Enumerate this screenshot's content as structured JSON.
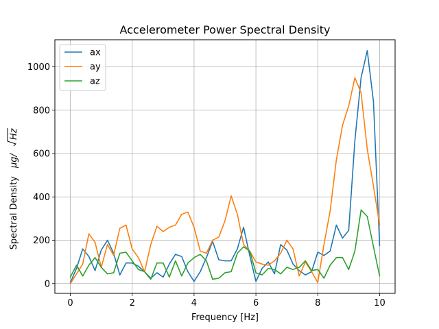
{
  "chart_data": {
    "type": "line",
    "title": "Accelerometer Power Spectral Density",
    "xlabel": "Frequency [Hz]",
    "ylabel_prefix": "Spectral Density",
    "ylabel_unit_left": "μg/",
    "ylabel_unit_radicand": "Hz",
    "xlim": [
      -0.5,
      10.5
    ],
    "ylim": [
      -45,
      1125
    ],
    "xticks": [
      0,
      2,
      4,
      6,
      8,
      10
    ],
    "yticks": [
      0,
      200,
      400,
      600,
      800,
      1000
    ],
    "grid": true,
    "legend_position": "upper-left",
    "x": [
      0.0,
      0.2,
      0.4,
      0.6,
      0.8,
      1.0,
      1.2,
      1.4,
      1.6,
      1.8,
      2.0,
      2.2,
      2.4,
      2.6,
      2.8,
      3.0,
      3.2,
      3.4,
      3.6,
      3.8,
      4.0,
      4.2,
      4.4,
      4.6,
      4.8,
      5.0,
      5.2,
      5.4,
      5.6,
      5.8,
      6.0,
      6.2,
      6.4,
      6.6,
      6.8,
      7.0,
      7.2,
      7.4,
      7.6,
      7.8,
      8.0,
      8.2,
      8.4,
      8.6,
      8.8,
      9.0,
      9.2,
      9.4,
      9.6,
      9.8,
      10.0
    ],
    "series": [
      {
        "name": "ax",
        "color": "#1f77b4",
        "values": [
          5,
          70,
          160,
          125,
          60,
          155,
          200,
          140,
          40,
          95,
          95,
          80,
          55,
          25,
          50,
          30,
          90,
          135,
          125,
          55,
          10,
          55,
          120,
          195,
          110,
          105,
          105,
          160,
          260,
          130,
          10,
          70,
          100,
          45,
          180,
          155,
          90,
          60,
          40,
          55,
          145,
          130,
          150,
          270,
          210,
          245,
          660,
          950,
          1075,
          840,
          175
        ]
      },
      {
        "name": "ay",
        "color": "#ff7f0e",
        "values": [
          0,
          45,
          90,
          230,
          190,
          75,
          180,
          130,
          255,
          270,
          160,
          120,
          55,
          180,
          265,
          240,
          260,
          270,
          320,
          330,
          260,
          150,
          140,
          200,
          215,
          290,
          405,
          320,
          180,
          150,
          100,
          90,
          85,
          105,
          140,
          200,
          160,
          35,
          100,
          55,
          5,
          180,
          335,
          570,
          730,
          820,
          950,
          880,
          620,
          450,
          270
        ]
      },
      {
        "name": "az",
        "color": "#2ca02c",
        "values": [
          30,
          85,
          35,
          85,
          120,
          75,
          45,
          50,
          140,
          145,
          105,
          65,
          55,
          20,
          95,
          95,
          30,
          105,
          35,
          95,
          120,
          135,
          105,
          20,
          25,
          50,
          55,
          140,
          170,
          150,
          50,
          40,
          70,
          65,
          45,
          75,
          65,
          75,
          105,
          60,
          65,
          25,
          85,
          120,
          120,
          65,
          150,
          340,
          310,
          170,
          35
        ]
      }
    ]
  }
}
